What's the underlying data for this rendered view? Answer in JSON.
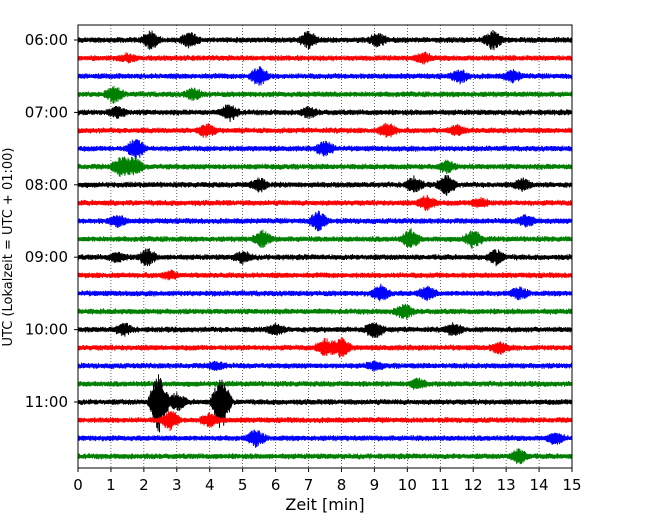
{
  "chart_data": {
    "type": "line",
    "title": "",
    "xlabel": "Zeit  [min]",
    "ylabel": "UTC (Lokalzeit = UTC + 01:00)",
    "xlim": [
      0,
      15
    ],
    "x_ticks": [
      "0",
      "1",
      "2",
      "3",
      "4",
      "5",
      "6",
      "7",
      "8",
      "9",
      "10",
      "11",
      "12",
      "13",
      "14",
      "15"
    ],
    "y_tick_labels": [
      "06:00",
      "07:00",
      "08:00",
      "09:00",
      "10:00",
      "11:00"
    ],
    "trace_interval_minutes": 15,
    "grid": "vertical dotted lines at each minute",
    "trace_colors": [
      "#000000",
      "#ff0000",
      "#0000ff",
      "#008000"
    ],
    "traces": [
      {
        "start": "06:00",
        "color": "#000000",
        "events": [
          {
            "t": 2.2,
            "amp": 0.5
          },
          {
            "t": 3.4,
            "amp": 0.4
          },
          {
            "t": 7.0,
            "amp": 0.45
          },
          {
            "t": 9.1,
            "amp": 0.35
          },
          {
            "t": 12.6,
            "amp": 0.5
          }
        ]
      },
      {
        "start": "06:15",
        "color": "#ff0000",
        "events": [
          {
            "t": 1.5,
            "amp": 0.2
          },
          {
            "t": 10.5,
            "amp": 0.25
          }
        ]
      },
      {
        "start": "06:30",
        "color": "#0000ff",
        "events": [
          {
            "t": 5.5,
            "amp": 0.55
          },
          {
            "t": 11.6,
            "amp": 0.35
          },
          {
            "t": 13.2,
            "amp": 0.3
          }
        ]
      },
      {
        "start": "06:45",
        "color": "#008000",
        "events": [
          {
            "t": 1.1,
            "amp": 0.45
          },
          {
            "t": 3.5,
            "amp": 0.3
          }
        ]
      },
      {
        "start": "07:00",
        "color": "#000000",
        "events": [
          {
            "t": 1.2,
            "amp": 0.3
          },
          {
            "t": 4.6,
            "amp": 0.45
          },
          {
            "t": 7.0,
            "amp": 0.25
          }
        ]
      },
      {
        "start": "07:15",
        "color": "#ff0000",
        "events": [
          {
            "t": 3.9,
            "amp": 0.35
          },
          {
            "t": 9.4,
            "amp": 0.4
          },
          {
            "t": 11.5,
            "amp": 0.25
          }
        ]
      },
      {
        "start": "07:30",
        "color": "#0000ff",
        "events": [
          {
            "t": 1.75,
            "amp": 0.6
          },
          {
            "t": 7.5,
            "amp": 0.4
          }
        ]
      },
      {
        "start": "07:45",
        "color": "#008000",
        "events": [
          {
            "t": 1.3,
            "amp": 0.55
          },
          {
            "t": 1.7,
            "amp": 0.5
          },
          {
            "t": 11.2,
            "amp": 0.3
          }
        ]
      },
      {
        "start": "08:00",
        "color": "#000000",
        "events": [
          {
            "t": 5.5,
            "amp": 0.35
          },
          {
            "t": 10.2,
            "amp": 0.4
          },
          {
            "t": 11.2,
            "amp": 0.55
          },
          {
            "t": 13.5,
            "amp": 0.3
          }
        ]
      },
      {
        "start": "08:15",
        "color": "#ff0000",
        "events": [
          {
            "t": 10.6,
            "amp": 0.4
          },
          {
            "t": 12.2,
            "amp": 0.25
          }
        ]
      },
      {
        "start": "08:30",
        "color": "#0000ff",
        "events": [
          {
            "t": 1.2,
            "amp": 0.3
          },
          {
            "t": 7.3,
            "amp": 0.55
          },
          {
            "t": 13.6,
            "amp": 0.3
          }
        ]
      },
      {
        "start": "08:45",
        "color": "#008000",
        "events": [
          {
            "t": 5.6,
            "amp": 0.45
          },
          {
            "t": 10.1,
            "amp": 0.5
          },
          {
            "t": 12.0,
            "amp": 0.5
          }
        ]
      },
      {
        "start": "09:00",
        "color": "#000000",
        "events": [
          {
            "t": 1.2,
            "amp": 0.25
          },
          {
            "t": 2.1,
            "amp": 0.45
          },
          {
            "t": 5.0,
            "amp": 0.3
          },
          {
            "t": 12.7,
            "amp": 0.4
          }
        ]
      },
      {
        "start": "09:15",
        "color": "#ff0000",
        "events": [
          {
            "t": 2.8,
            "amp": 0.2
          }
        ]
      },
      {
        "start": "09:30",
        "color": "#0000ff",
        "events": [
          {
            "t": 9.2,
            "amp": 0.45
          },
          {
            "t": 10.6,
            "amp": 0.35
          },
          {
            "t": 13.4,
            "amp": 0.3
          }
        ]
      },
      {
        "start": "09:45",
        "color": "#008000",
        "events": [
          {
            "t": 9.9,
            "amp": 0.4
          }
        ]
      },
      {
        "start": "10:00",
        "color": "#000000",
        "events": [
          {
            "t": 1.4,
            "amp": 0.3
          },
          {
            "t": 6.0,
            "amp": 0.3
          },
          {
            "t": 9.0,
            "amp": 0.5
          },
          {
            "t": 11.4,
            "amp": 0.3
          }
        ]
      },
      {
        "start": "10:15",
        "color": "#ff0000",
        "events": [
          {
            "t": 7.5,
            "amp": 0.5
          },
          {
            "t": 8.0,
            "amp": 0.55
          },
          {
            "t": 12.8,
            "amp": 0.3
          }
        ]
      },
      {
        "start": "10:30",
        "color": "#0000ff",
        "events": [
          {
            "t": 4.2,
            "amp": 0.2
          },
          {
            "t": 9.0,
            "amp": 0.2
          }
        ]
      },
      {
        "start": "10:45",
        "color": "#008000",
        "events": [
          {
            "t": 10.3,
            "amp": 0.25
          }
        ]
      },
      {
        "start": "11:00",
        "color": "#000000",
        "events": [
          {
            "t": 2.45,
            "amp": 1.9
          },
          {
            "t": 3.0,
            "amp": 0.5
          },
          {
            "t": 4.35,
            "amp": 1.7
          }
        ]
      },
      {
        "start": "11:15",
        "color": "#ff0000",
        "events": [
          {
            "t": 2.8,
            "amp": 0.55
          },
          {
            "t": 4.0,
            "amp": 0.35
          }
        ]
      },
      {
        "start": "11:30",
        "color": "#0000ff",
        "events": [
          {
            "t": 5.4,
            "amp": 0.45
          },
          {
            "t": 14.5,
            "amp": 0.3
          }
        ]
      },
      {
        "start": "11:45",
        "color": "#008000",
        "events": [
          {
            "t": 13.4,
            "amp": 0.4
          }
        ]
      }
    ]
  }
}
